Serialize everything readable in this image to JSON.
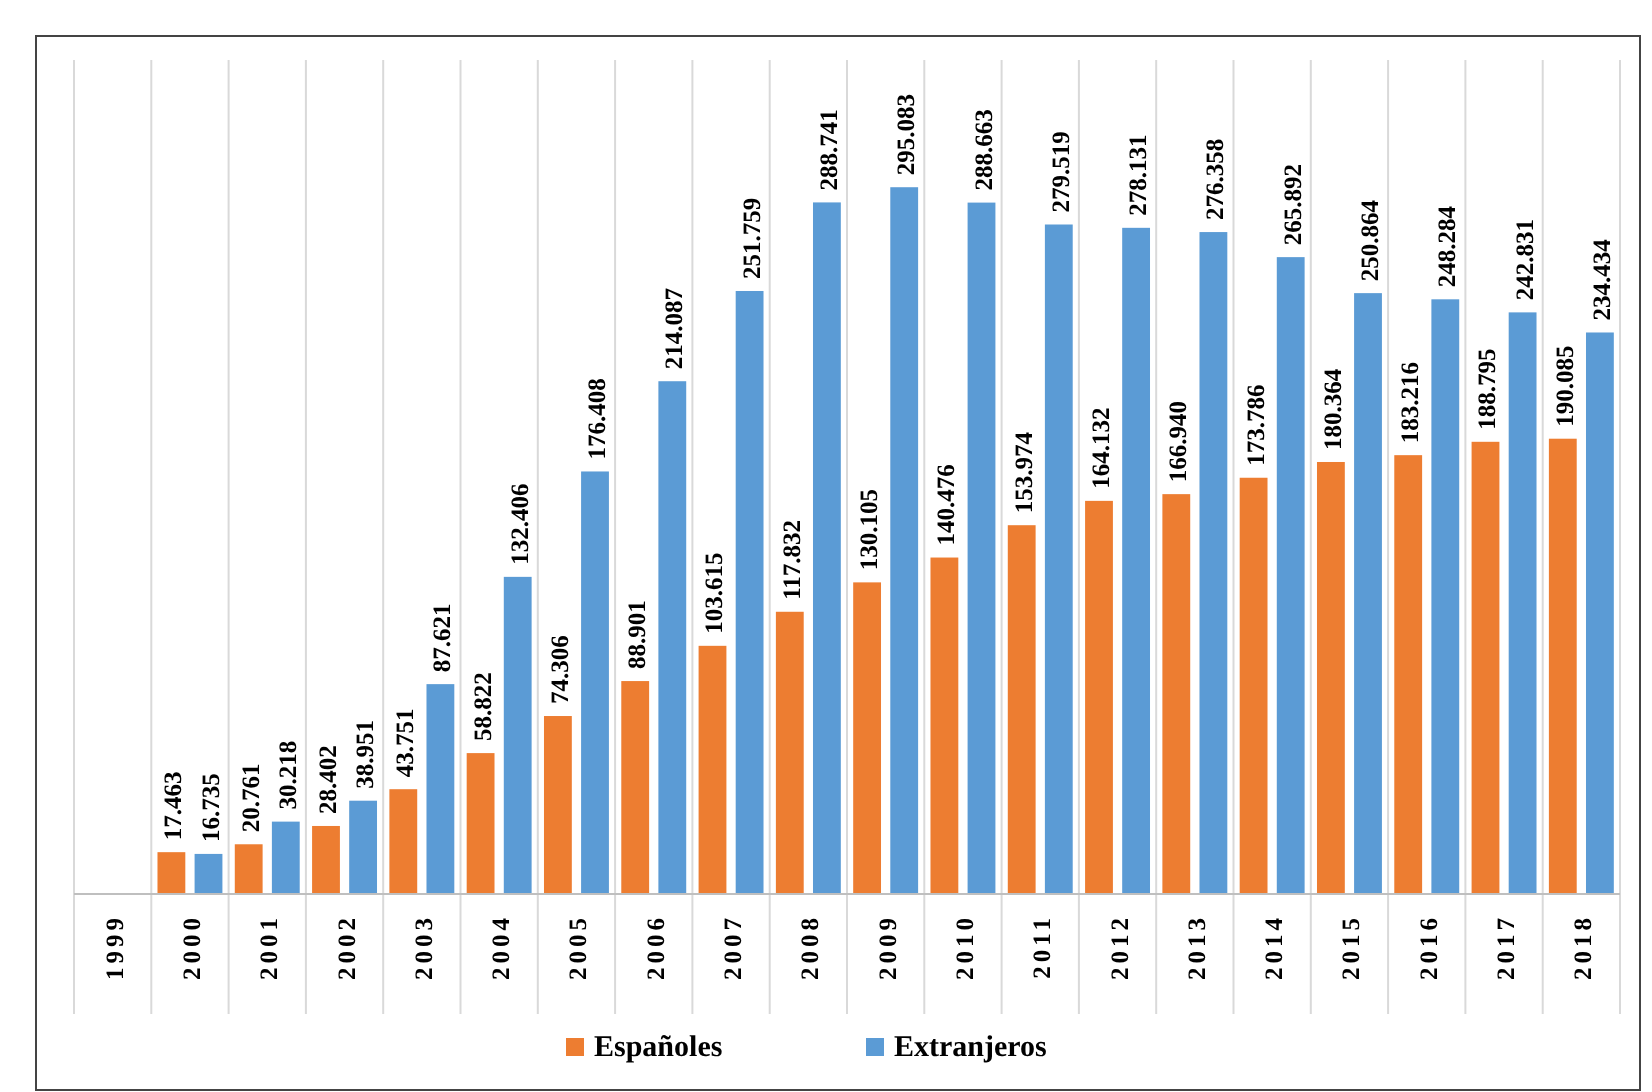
{
  "chart_data": {
    "type": "bar",
    "categories": [
      "1999",
      "2000",
      "2001",
      "2002",
      "2003",
      "2004",
      "2005",
      "2006",
      "2007",
      "2008",
      "2009",
      "2010",
      "2011",
      "2012",
      "2013",
      "2014",
      "2015",
      "2016",
      "2017",
      "2018"
    ],
    "series": [
      {
        "name": "Españoles",
        "color": "#ed7d31",
        "values": [
          null,
          17463,
          20761,
          28402,
          43751,
          58822,
          74306,
          88901,
          103615,
          117832,
          130105,
          140476,
          153974,
          164132,
          166940,
          173786,
          180364,
          183216,
          188795,
          190085
        ],
        "value_labels": [
          null,
          "17.463",
          "20.761",
          "28.402",
          "43.751",
          "58.822",
          "74.306",
          "88.901",
          "103.615",
          "117.832",
          "130.105",
          "140.476",
          "153.974",
          "164.132",
          "166.940",
          "173.786",
          "180.364",
          "183.216",
          "188.795",
          "190.085"
        ]
      },
      {
        "name": "Extranjeros",
        "color": "#5b9bd5",
        "values": [
          null,
          16735,
          30218,
          38951,
          87621,
          132406,
          176408,
          214087,
          251759,
          288741,
          295083,
          288663,
          279519,
          278131,
          276358,
          265892,
          250864,
          248284,
          242831,
          234434
        ],
        "value_labels": [
          null,
          "16.735",
          "30.218",
          "38.951",
          "87.621",
          "132.406",
          "176.408",
          "214.087",
          "251.759",
          "288.741",
          "295.083",
          "288.663",
          "279.519",
          "278.131",
          "276.358",
          "265.892",
          "250.864",
          "248.284",
          "242.831",
          "234.434"
        ]
      }
    ],
    "grid": "x",
    "legend": "bottom",
    "tick_labels": "x"
  }
}
